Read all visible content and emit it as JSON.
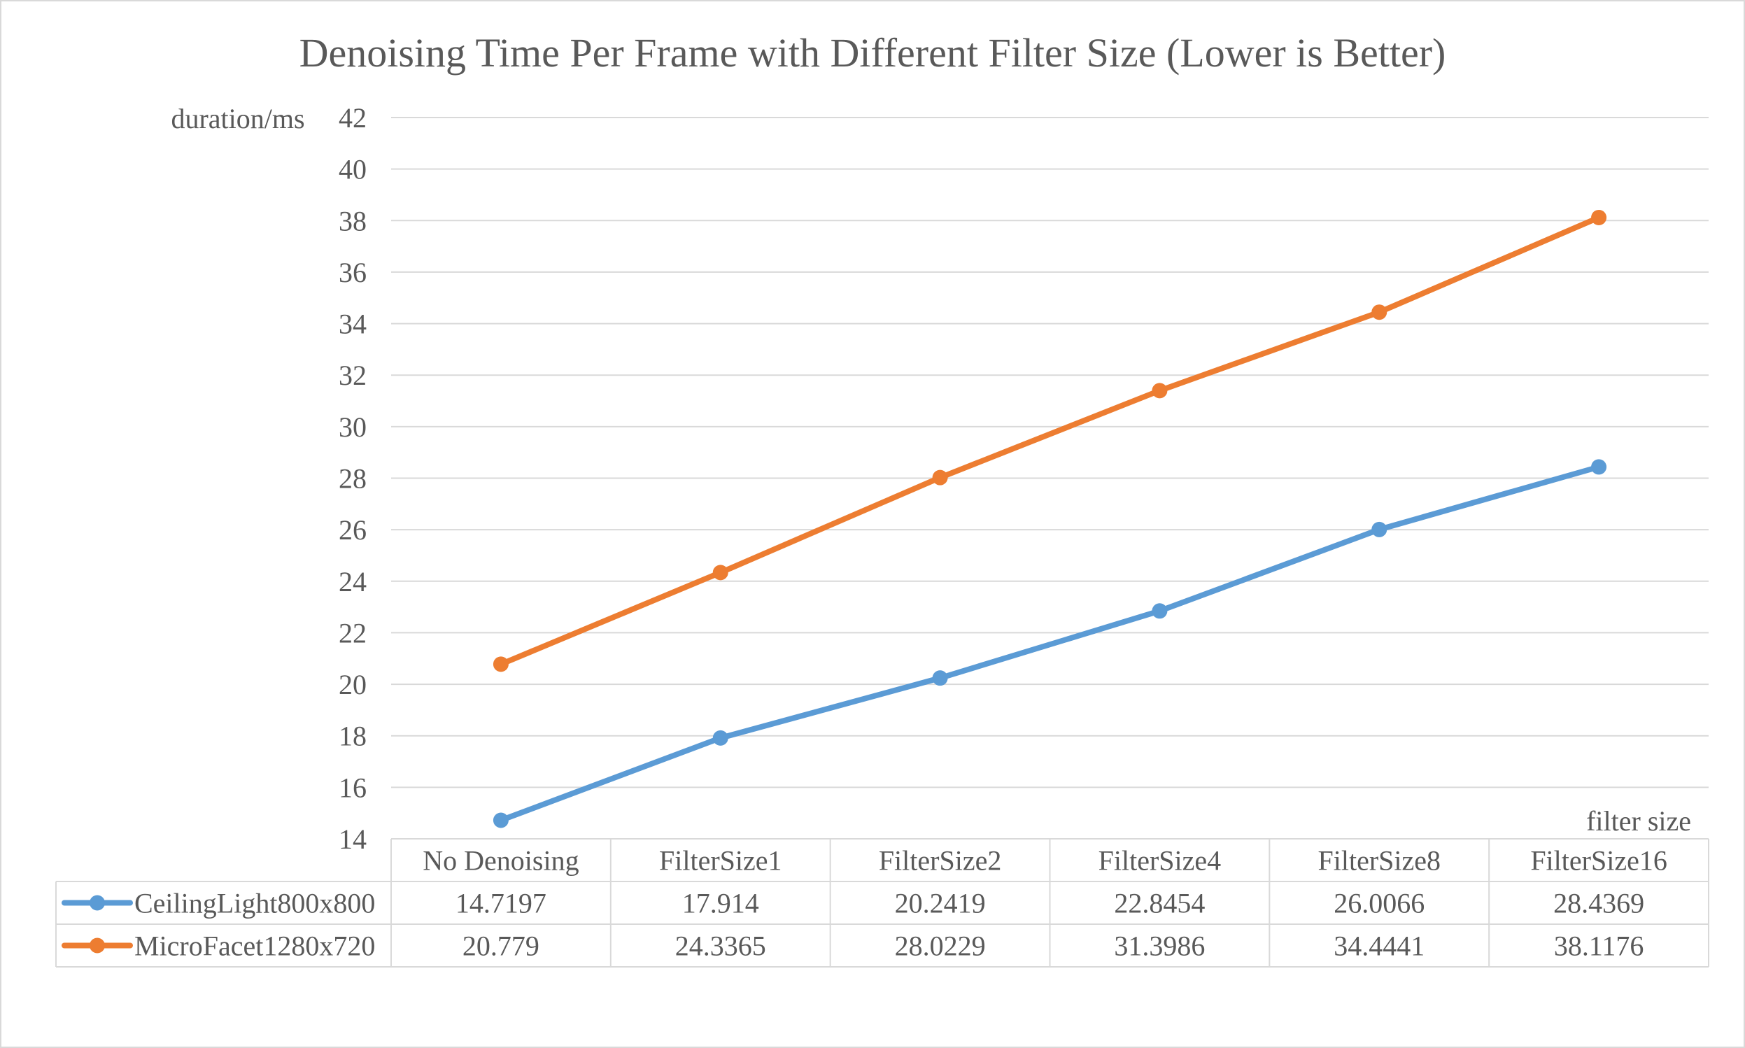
{
  "chart_data": {
    "type": "line",
    "title": "Denoising Time Per Frame with Different Filter Size (Lower is Better)",
    "ylabel": "duration/ms",
    "xlabel": "filter size",
    "ylim": [
      14,
      42
    ],
    "y_ticks": [
      14,
      16,
      18,
      20,
      22,
      24,
      26,
      28,
      30,
      32,
      34,
      36,
      38,
      40,
      42
    ],
    "grid": true,
    "legend": "data-table",
    "categories": [
      "No Denoising",
      "FilterSize1",
      "FilterSize2",
      "FilterSize4",
      "FilterSize8",
      "FilterSize16"
    ],
    "series": [
      {
        "name": "CeilingLight800x800",
        "color": "#5b9bd5",
        "values": [
          14.7197,
          17.914,
          20.2419,
          22.8454,
          26.0066,
          28.4369
        ],
        "labels": [
          "14.7197",
          "17.914",
          "20.2419",
          "22.8454",
          "26.0066",
          "28.4369"
        ]
      },
      {
        "name": "MicroFacet1280x720",
        "color": "#ed7d31",
        "values": [
          20.779,
          24.3365,
          28.0229,
          31.3986,
          34.4441,
          38.1176
        ],
        "labels": [
          "20.779",
          "24.3365",
          "28.0229",
          "31.3986",
          "34.4441",
          "38.1176"
        ]
      }
    ]
  }
}
